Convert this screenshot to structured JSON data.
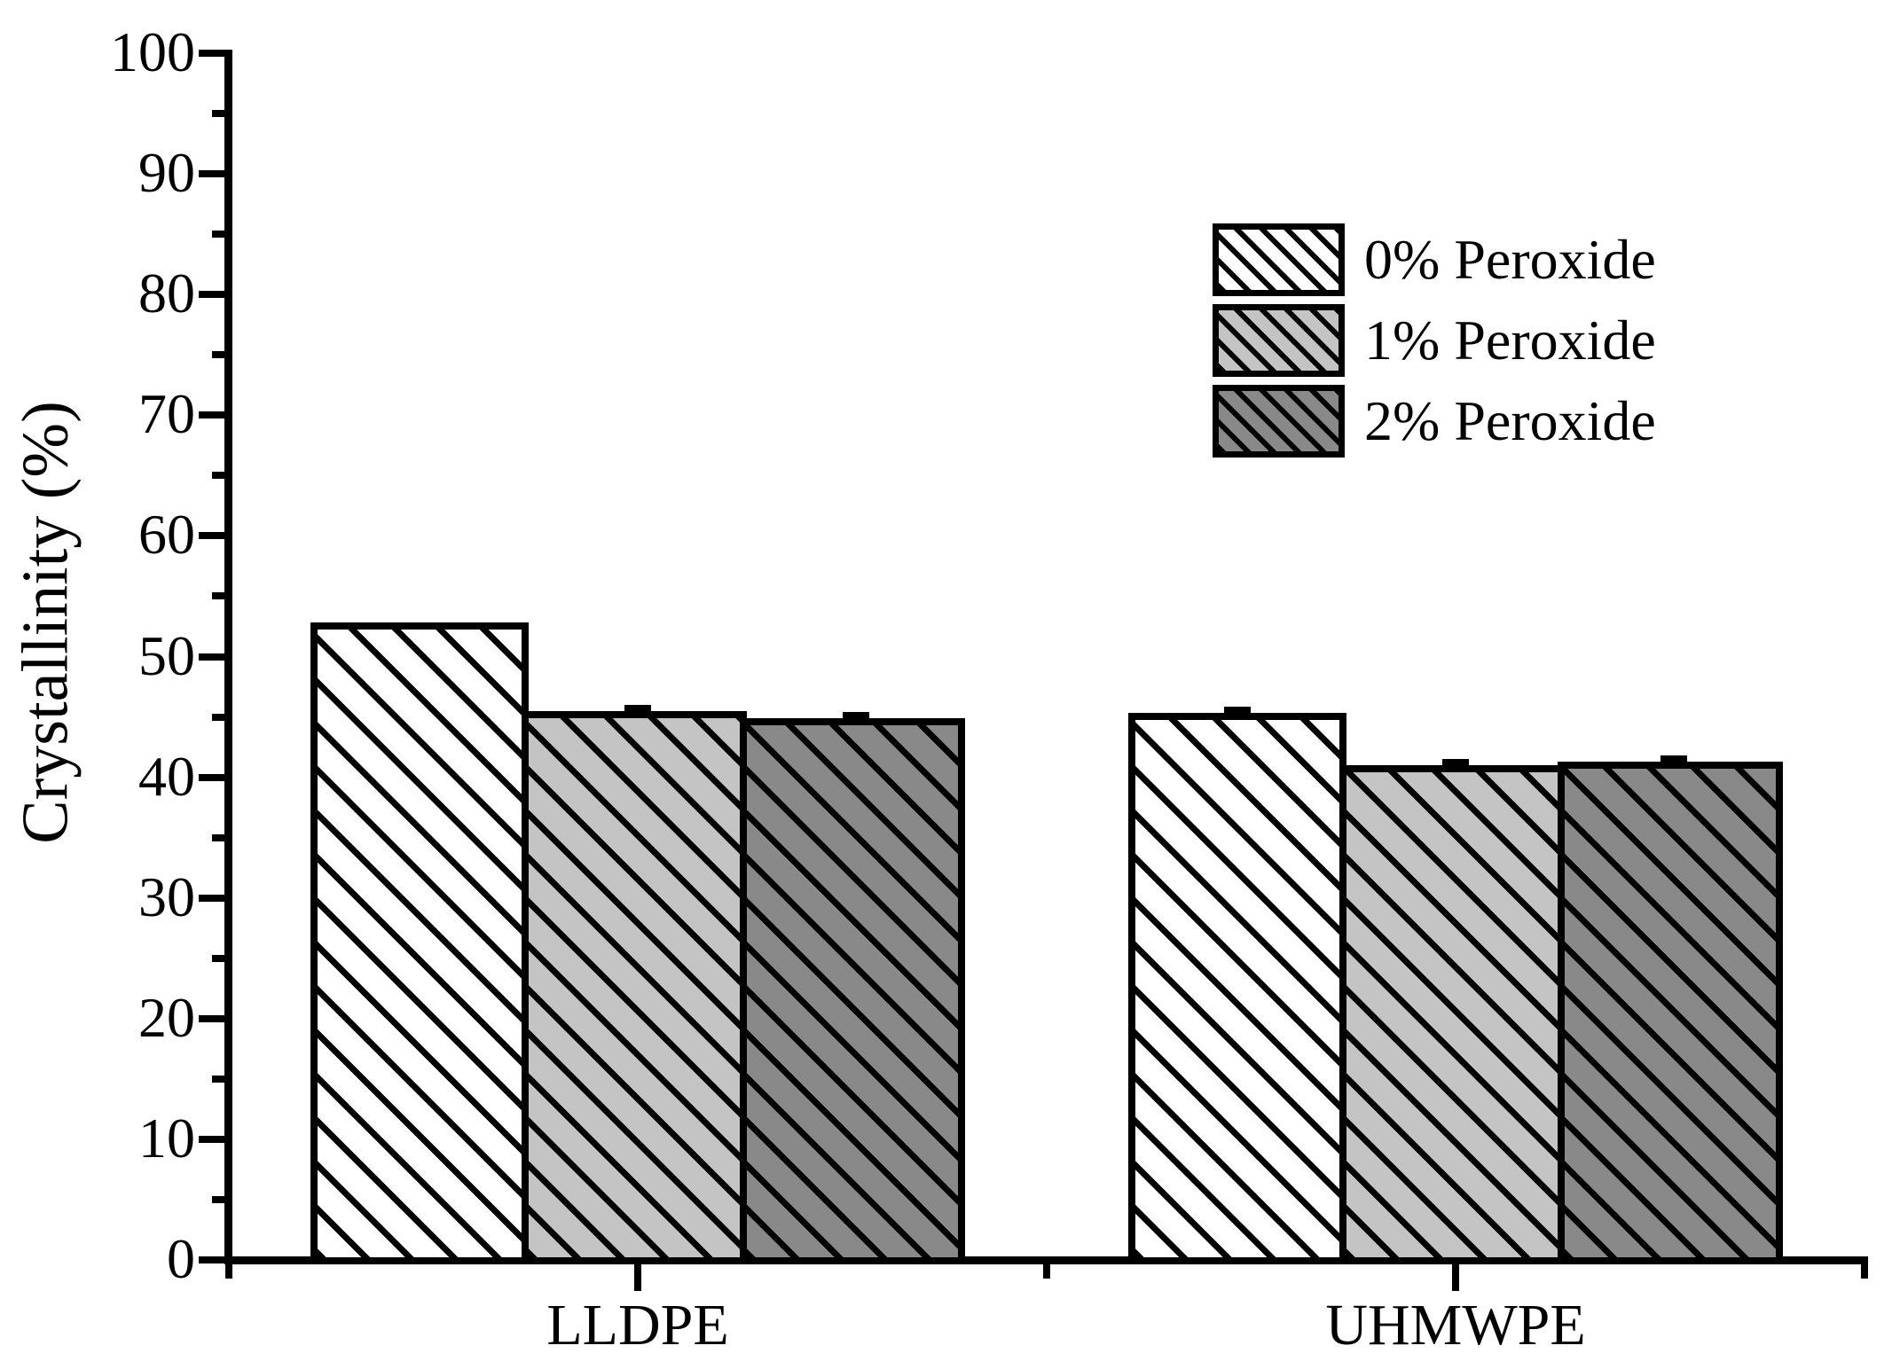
{
  "chart_data": {
    "type": "bar",
    "title": "",
    "xlabel": "",
    "ylabel": "Crystallinity (%)",
    "categories": [
      "LLDPE",
      "UHMWPE"
    ],
    "series": [
      {
        "name": "0% Peroxide",
        "fill": "#ffffff",
        "values": [
          52.8,
          45.3
        ],
        "error_caps": [
          false,
          true
        ]
      },
      {
        "name": "1% Peroxide",
        "fill": "#c4c4c4",
        "values": [
          45.5,
          41.0
        ],
        "error_caps": [
          true,
          true
        ]
      },
      {
        "name": "2% Peroxide",
        "fill": "#898989",
        "values": [
          44.9,
          41.3
        ],
        "error_caps": [
          true,
          true
        ]
      }
    ],
    "ylim": [
      0,
      100
    ],
    "y_major_step": 10,
    "y_minor_step": 5,
    "y_tick_labels": [
      "0",
      "10",
      "20",
      "30",
      "40",
      "50",
      "60",
      "70",
      "80",
      "90",
      "100"
    ],
    "grid": "off",
    "legend_position": "top-right",
    "hatch_pattern": "diagonal-down",
    "axis_color": "#000000",
    "hatch_color": "#000000"
  }
}
